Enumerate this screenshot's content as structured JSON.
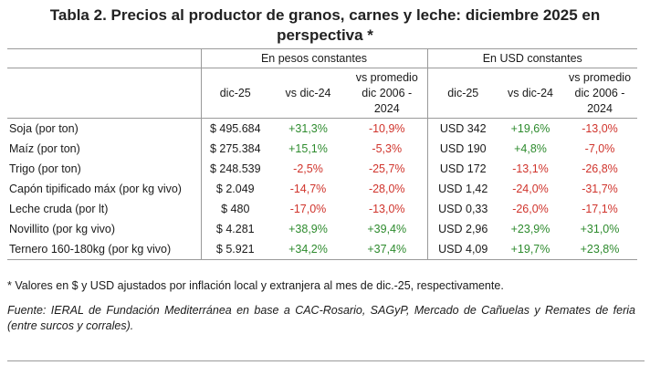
{
  "title_line1": "Tabla 2. Precios al productor de granos, carnes y leche: diciembre 2025 en",
  "title_line2": "perspectiva *",
  "groups": {
    "ars": "En pesos constantes",
    "usd": "En USD constantes"
  },
  "columns": {
    "current": "dic-25",
    "yoy": "vs dic-24",
    "avg_l1": "vs promedio",
    "avg_l2": "dic 2006 -",
    "avg_l3": "2024"
  },
  "rows": [
    {
      "name": "Soja (por ton)",
      "ars": "$ 495.684",
      "ars_yoy": "+31,3%",
      "ars_avg": "-10,9%",
      "usd": "USD 342",
      "usd_yoy": "+19,6%",
      "usd_avg": "-13,0%"
    },
    {
      "name": "Maíz (por ton)",
      "ars": "$ 275.384",
      "ars_yoy": "+15,1%",
      "ars_avg": "-5,3%",
      "usd": "USD 190",
      "usd_yoy": "+4,8%",
      "usd_avg": "-7,0%"
    },
    {
      "name": "Trigo (por ton)",
      "ars": "$ 248.539",
      "ars_yoy": "-2,5%",
      "ars_avg": "-25,7%",
      "usd": "USD 172",
      "usd_yoy": "-13,1%",
      "usd_avg": "-26,8%"
    },
    {
      "name": "Capón tipificado máx (por kg vivo)",
      "ars": "$ 2.049",
      "ars_yoy": "-14,7%",
      "ars_avg": "-28,0%",
      "usd": "USD 1,42",
      "usd_yoy": "-24,0%",
      "usd_avg": "-31,7%"
    },
    {
      "name": "Leche cruda (por lt)",
      "ars": "$ 480",
      "ars_yoy": "-17,0%",
      "ars_avg": "-13,0%",
      "usd": "USD 0,33",
      "usd_yoy": "-26,0%",
      "usd_avg": "-17,1%"
    },
    {
      "name": "Novillito (por kg vivo)",
      "ars": "$ 4.281",
      "ars_yoy": "+38,9%",
      "ars_avg": "+39,4%",
      "usd": "USD 2,96",
      "usd_yoy": "+23,9%",
      "usd_avg": "+31,0%"
    },
    {
      "name": "Ternero 160-180kg (por kg vivo)",
      "ars": "$ 5.921",
      "ars_yoy": "+34,2%",
      "ars_avg": "+37,4%",
      "usd": "USD 4,09",
      "usd_yoy": "+19,7%",
      "usd_avg": "+23,8%"
    }
  ],
  "colors": {
    "positive": "#2e8b2e",
    "negative": "#d0342c"
  },
  "note": "* Valores en $ y USD ajustados por inflación local y extranjera al mes de dic.-25, respectivamente.",
  "source": "Fuente: IERAL de Fundación Mediterránea en base a CAC-Rosario, SAGyP, Mercado de Cañuelas y Remates de feria (entre surcos y corrales)."
}
